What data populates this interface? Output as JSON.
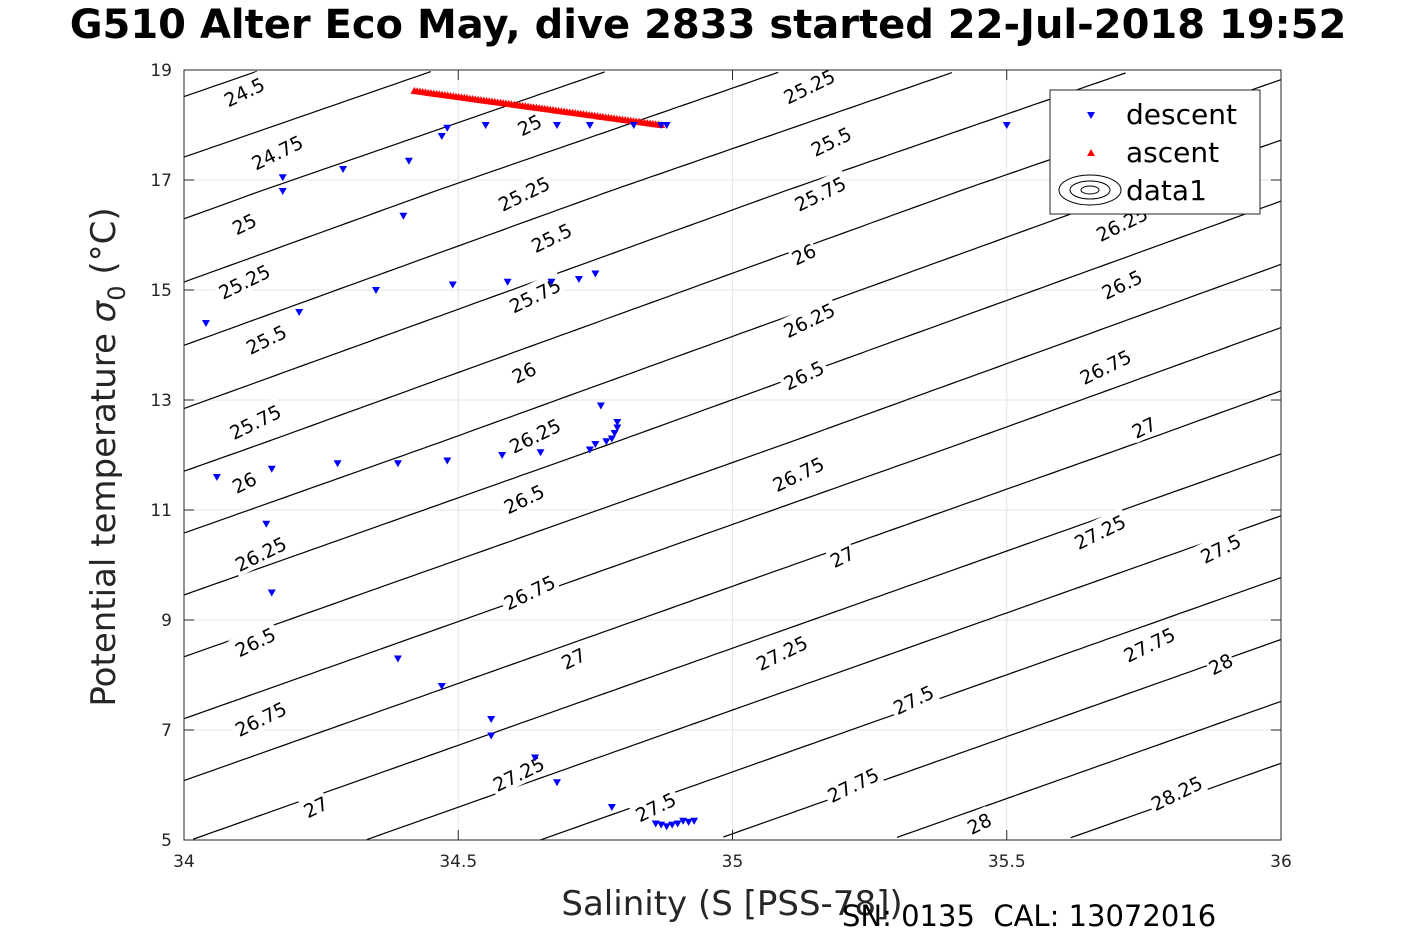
{
  "title": "G510 Alter Eco May, dive 2833 started 22-Jul-2018 19:52",
  "footer": "SN: 0135  CAL: 13072016",
  "colors": {
    "descent": "#0000ff",
    "ascent": "#ff0000",
    "contour": "#000000",
    "grid": "#e6e6e6",
    "axis": "#262626"
  },
  "chart_data": {
    "type": "scatter",
    "xlabel": "Salinity (S [PSS-78])",
    "ylabel": "Potential temperature",
    "ylabel_symbol": "σ",
    "ylabel_subscript": "0",
    "ylabel_unit": "(°C)",
    "xlim": [
      34,
      36
    ],
    "ylim": [
      5,
      19
    ],
    "x_ticks": [
      "34",
      "34.5",
      "35",
      "35.5",
      "36"
    ],
    "y_ticks": [
      "5",
      "7",
      "9",
      "11",
      "13",
      "15",
      "17",
      "19"
    ],
    "grid": true,
    "legend_position": "top-right",
    "legend": [
      "descent",
      "ascent",
      "data1"
    ],
    "series": [
      {
        "name": "descent",
        "marker": "triangle-down",
        "points": [
          [
            34.04,
            14.4
          ],
          [
            34.06,
            11.6
          ],
          [
            34.15,
            10.75
          ],
          [
            34.16,
            9.5
          ],
          [
            34.16,
            11.75
          ],
          [
            34.18,
            16.8
          ],
          [
            34.18,
            17.05
          ],
          [
            34.21,
            14.6
          ],
          [
            34.28,
            11.85
          ],
          [
            34.29,
            17.2
          ],
          [
            34.35,
            15.0
          ],
          [
            34.39,
            8.3
          ],
          [
            34.39,
            11.85
          ],
          [
            34.4,
            16.35
          ],
          [
            34.41,
            17.35
          ],
          [
            34.47,
            7.8
          ],
          [
            34.47,
            17.8
          ],
          [
            34.48,
            11.9
          ],
          [
            34.48,
            17.95
          ],
          [
            34.49,
            15.1
          ],
          [
            34.55,
            18.0
          ],
          [
            34.56,
            7.2
          ],
          [
            34.56,
            6.9
          ],
          [
            34.58,
            12.0
          ],
          [
            34.59,
            15.15
          ],
          [
            34.64,
            6.5
          ],
          [
            34.65,
            12.05
          ],
          [
            34.67,
            15.15
          ],
          [
            34.68,
            6.05
          ],
          [
            34.68,
            18.0
          ],
          [
            34.72,
            15.2
          ],
          [
            34.74,
            12.1
          ],
          [
            34.74,
            18.0
          ],
          [
            34.75,
            15.3
          ],
          [
            34.75,
            12.2
          ],
          [
            34.76,
            12.9
          ],
          [
            34.77,
            12.25
          ],
          [
            34.78,
            5.6
          ],
          [
            34.78,
            12.3
          ],
          [
            34.785,
            12.4
          ],
          [
            34.79,
            12.5
          ],
          [
            34.79,
            12.6
          ],
          [
            34.82,
            18.0
          ],
          [
            34.86,
            5.3
          ],
          [
            34.87,
            5.28
          ],
          [
            34.88,
            5.25
          ],
          [
            34.89,
            5.28
          ],
          [
            34.9,
            5.3
          ],
          [
            34.91,
            5.35
          ],
          [
            34.92,
            5.33
          ],
          [
            34.93,
            5.35
          ],
          [
            34.88,
            18.0
          ],
          [
            34.87,
            18.0
          ],
          [
            35.5,
            18.0
          ]
        ]
      },
      {
        "name": "ascent",
        "marker": "triangle-up",
        "segment": {
          "x_start": 34.42,
          "y_start": 18.62,
          "x_end": 34.87,
          "y_end": 18.0,
          "count": 90
        }
      }
    ],
    "density": {
      "s_ref": 34.14,
      "t_ref": 19,
      "dsigma_dS": 0.785,
      "dsigma_dT": -0.236,
      "spacing_levels": [
        24.5,
        25,
        25.5,
        26,
        26.5,
        27,
        27.5,
        28,
        28.5
      ],
      "spacing_T": [
        19,
        16.8,
        14.5,
        12.2,
        9.95,
        7.7,
        5.45,
        3.2,
        0.95
      ]
    },
    "contour_labels": [
      {
        "text": "24.5",
        "s": 34.11,
        "t": 18.6
      },
      {
        "text": "24.75",
        "s": 34.17,
        "t": 17.5
      },
      {
        "text": "25",
        "s": 34.11,
        "t": 16.2
      },
      {
        "text": "25.25",
        "s": 34.11,
        "t": 15.15
      },
      {
        "text": "25.5",
        "s": 34.15,
        "t": 14.1
      },
      {
        "text": "25.75",
        "s": 34.13,
        "t": 12.6
      },
      {
        "text": "26",
        "s": 34.11,
        "t": 11.5
      },
      {
        "text": "26.25",
        "s": 34.14,
        "t": 10.2
      },
      {
        "text": "26.5",
        "s": 34.13,
        "t": 8.6
      },
      {
        "text": "26.75",
        "s": 34.14,
        "t": 7.2
      },
      {
        "text": "27",
        "s": 34.24,
        "t": 5.6
      },
      {
        "text": "25",
        "s": 34.63,
        "t": 18.0
      },
      {
        "text": "25.25",
        "s": 34.62,
        "t": 16.75
      },
      {
        "text": "25.5",
        "s": 34.67,
        "t": 15.95
      },
      {
        "text": "25.75",
        "s": 34.64,
        "t": 14.9
      },
      {
        "text": "26",
        "s": 34.62,
        "t": 13.5
      },
      {
        "text": "26.25",
        "s": 34.64,
        "t": 12.35
      },
      {
        "text": "26.5",
        "s": 34.62,
        "t": 11.2
      },
      {
        "text": "26.75",
        "s": 34.63,
        "t": 9.5
      },
      {
        "text": "27",
        "s": 34.71,
        "t": 8.3
      },
      {
        "text": "27.25",
        "s": 34.61,
        "t": 6.2
      },
      {
        "text": "27.5",
        "s": 34.86,
        "t": 5.6
      },
      {
        "text": "25.25",
        "s": 35.14,
        "t": 18.7
      },
      {
        "text": "25.5",
        "s": 35.18,
        "t": 17.7
      },
      {
        "text": "25.75",
        "s": 35.16,
        "t": 16.75
      },
      {
        "text": "26",
        "s": 35.13,
        "t": 15.65
      },
      {
        "text": "26.25",
        "s": 35.14,
        "t": 14.45
      },
      {
        "text": "26.5",
        "s": 35.13,
        "t": 13.45
      },
      {
        "text": "26.75",
        "s": 35.12,
        "t": 11.65
      },
      {
        "text": "27",
        "s": 35.2,
        "t": 10.15
      },
      {
        "text": "27.25",
        "s": 35.09,
        "t": 8.4
      },
      {
        "text": "27.5",
        "s": 35.33,
        "t": 7.55
      },
      {
        "text": "27.75",
        "s": 35.22,
        "t": 6.0
      },
      {
        "text": "28",
        "s": 35.45,
        "t": 5.3
      },
      {
        "text": "26.25",
        "s": 35.71,
        "t": 16.2
      },
      {
        "text": "26.5",
        "s": 35.71,
        "t": 15.1
      },
      {
        "text": "26.75",
        "s": 35.68,
        "t": 13.6
      },
      {
        "text": "27",
        "s": 35.75,
        "t": 12.5
      },
      {
        "text": "27.25",
        "s": 35.67,
        "t": 10.6
      },
      {
        "text": "27.5",
        "s": 35.89,
        "t": 10.3
      },
      {
        "text": "27.75",
        "s": 35.76,
        "t": 8.55
      },
      {
        "text": "28",
        "s": 35.89,
        "t": 8.2
      },
      {
        "text": "28.25",
        "s": 35.81,
        "t": 5.85
      }
    ]
  }
}
